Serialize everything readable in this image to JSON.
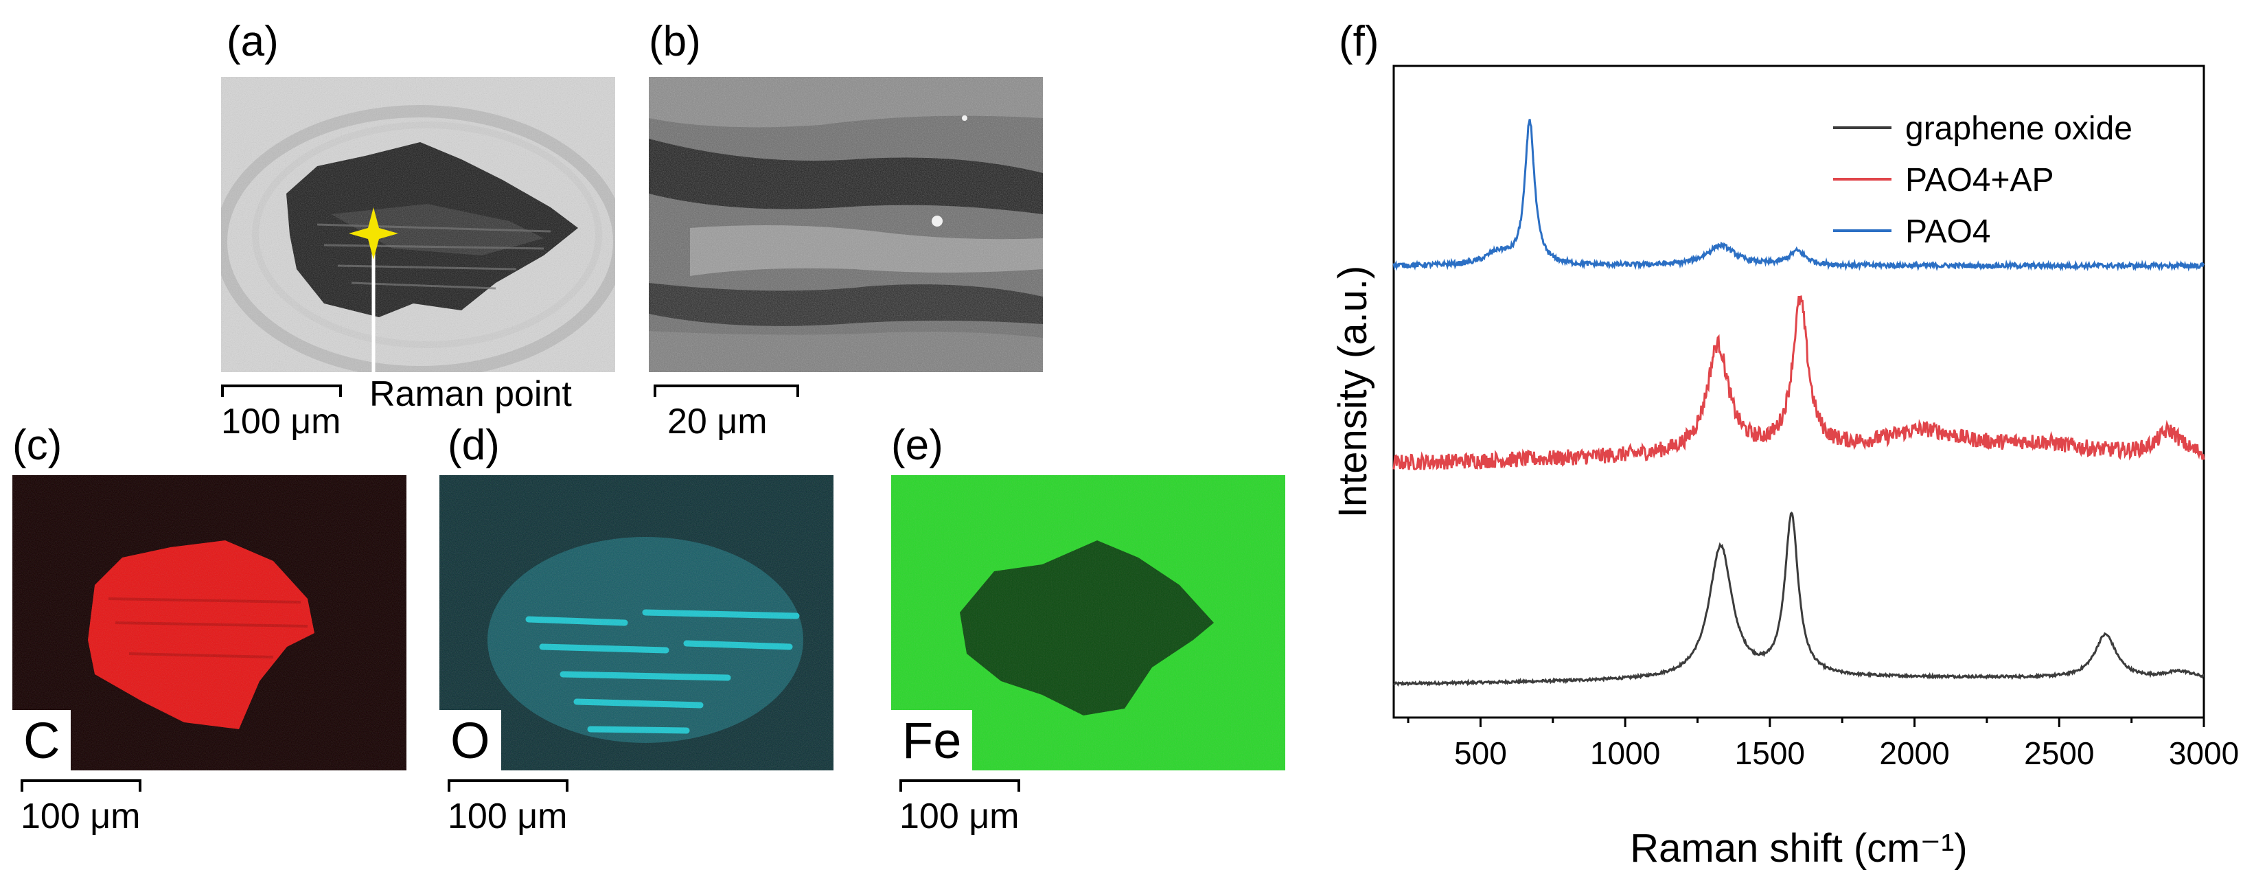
{
  "panels": {
    "a": {
      "label": "(a)",
      "scale": "100 μm",
      "annotation": "Raman point"
    },
    "b": {
      "label": "(b)",
      "scale": "20 μm"
    },
    "c": {
      "label": "(c)",
      "element": "C",
      "scale": "100 μm",
      "color": "#ff1a1a"
    },
    "d": {
      "label": "(d)",
      "element": "O",
      "scale": "100 μm",
      "color": "#19d2dc"
    },
    "e": {
      "label": "(e)",
      "element": "Fe",
      "scale": "100 μm",
      "color": "#2ad62a"
    },
    "f": {
      "label": "(f)"
    }
  },
  "chart_data": {
    "type": "line",
    "title": "",
    "xlabel": "Raman shift (cm⁻¹)",
    "ylabel": "Intensity (a.u.)",
    "xlim": [
      200,
      3000
    ],
    "xticks": [
      500,
      1000,
      1500,
      2000,
      2500,
      3000
    ],
    "yticks": [],
    "legend_position": "top-right",
    "series": [
      {
        "name": "graphene oxide",
        "color": "#3c3c3c",
        "offset": 0.0,
        "baseline": 0.02,
        "noise": 0.003,
        "peaks": [
          {
            "center": 1330,
            "height": 0.33,
            "width": 48
          },
          {
            "center": 1575,
            "height": 0.4,
            "width": 28
          },
          {
            "center": 2660,
            "height": 0.11,
            "width": 45
          },
          {
            "center": 2920,
            "height": 0.02,
            "width": 70
          }
        ]
      },
      {
        "name": "PAO4+AP",
        "color": "#e0454a",
        "offset": 0.55,
        "baseline": 0.035,
        "noise": 0.02,
        "peaks": [
          {
            "center": 1320,
            "height": 0.27,
            "width": 45
          },
          {
            "center": 1605,
            "height": 0.37,
            "width": 32
          },
          {
            "center": 2030,
            "height": 0.05,
            "width": 160
          },
          {
            "center": 2430,
            "height": 0.02,
            "width": 160
          },
          {
            "center": 2880,
            "height": 0.06,
            "width": 50
          }
        ]
      },
      {
        "name": "PAO4",
        "color": "#2b6fc4",
        "offset": 1.05,
        "baseline": 0.0,
        "noise": 0.006,
        "peaks": [
          {
            "center": 670,
            "height": 0.36,
            "width": 20
          },
          {
            "center": 560,
            "height": 0.03,
            "width": 50
          },
          {
            "center": 1330,
            "height": 0.05,
            "width": 60
          },
          {
            "center": 1595,
            "height": 0.035,
            "width": 35
          }
        ]
      }
    ]
  }
}
